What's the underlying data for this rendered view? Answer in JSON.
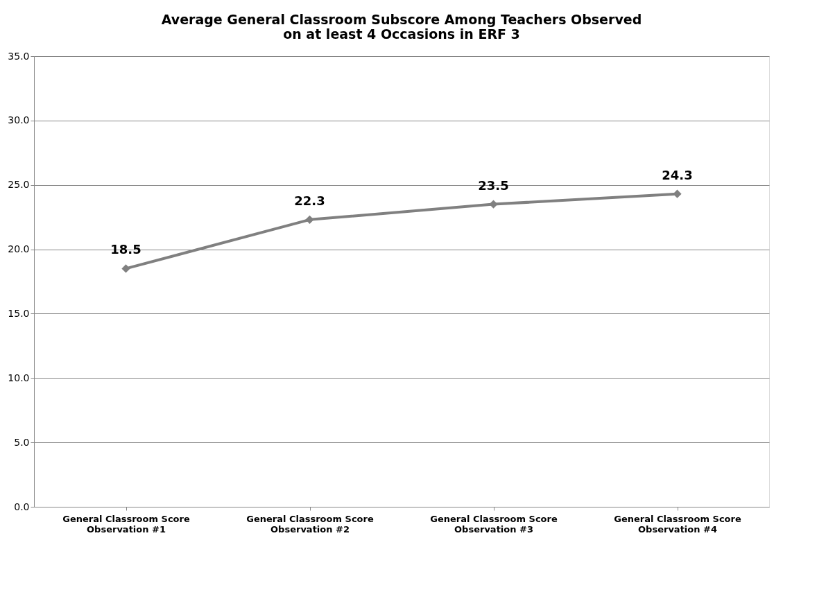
{
  "chart_data": {
    "type": "line",
    "title": [
      "Average General Classroom Subscore Among Teachers Observed",
      "on at least 4 Occasions in ERF 3"
    ],
    "categories": [
      "General Classroom Score Observation #1",
      "General Classroom Score Observation #2",
      "General Classroom Score Observation #3",
      "General Classroom Score Observation #4"
    ],
    "series": [
      {
        "color": "#808080",
        "values": [
          18.5,
          22.3,
          23.5,
          24.3
        ]
      }
    ],
    "ylim": [
      0,
      35
    ],
    "yticks": [
      {
        "value": 0,
        "label": "0.0"
      },
      {
        "value": 5,
        "label": "5.0"
      },
      {
        "value": 10,
        "label": "10.0"
      },
      {
        "value": 15,
        "label": "15.0"
      },
      {
        "value": 20,
        "label": "20.0"
      },
      {
        "value": 25,
        "label": "25.0"
      },
      {
        "value": 30,
        "label": "30.0"
      },
      {
        "value": 35,
        "label": "35.0"
      }
    ],
    "grid": "y",
    "marker": "diamond",
    "line_style": "solid",
    "data_labels": true
  }
}
